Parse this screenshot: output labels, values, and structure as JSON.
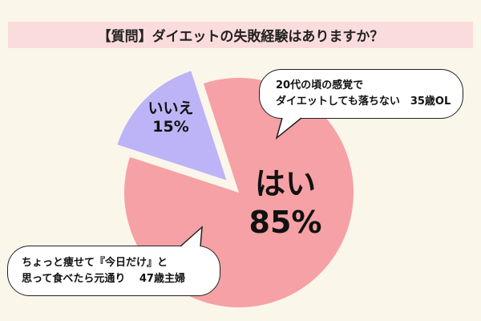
{
  "title": "【質問】ダイエットの失敗経験はありますか？",
  "chart_data": {
    "type": "pie",
    "title": "【質問】ダイエットの失敗経験はありますか？",
    "slices": [
      {
        "label": "はい",
        "percent_label": "85%",
        "value": 85,
        "color": "#f6a1a5"
      },
      {
        "label": "いいえ",
        "percent_label": "15%",
        "value": 15,
        "color": "#bcb4f6"
      }
    ]
  },
  "comments": [
    {
      "line1": "20代の頃の感覚で",
      "line2": "ダイエットしても落ちない　35歳OL"
    },
    {
      "line1": "ちょっと痩せて『今日だけ』と",
      "line2": "思って食べたら元通り　 47歳主婦"
    }
  ],
  "colors": {
    "background": "#fbf6ea",
    "title_bg": "#fbdcdc",
    "border": "#222222"
  }
}
